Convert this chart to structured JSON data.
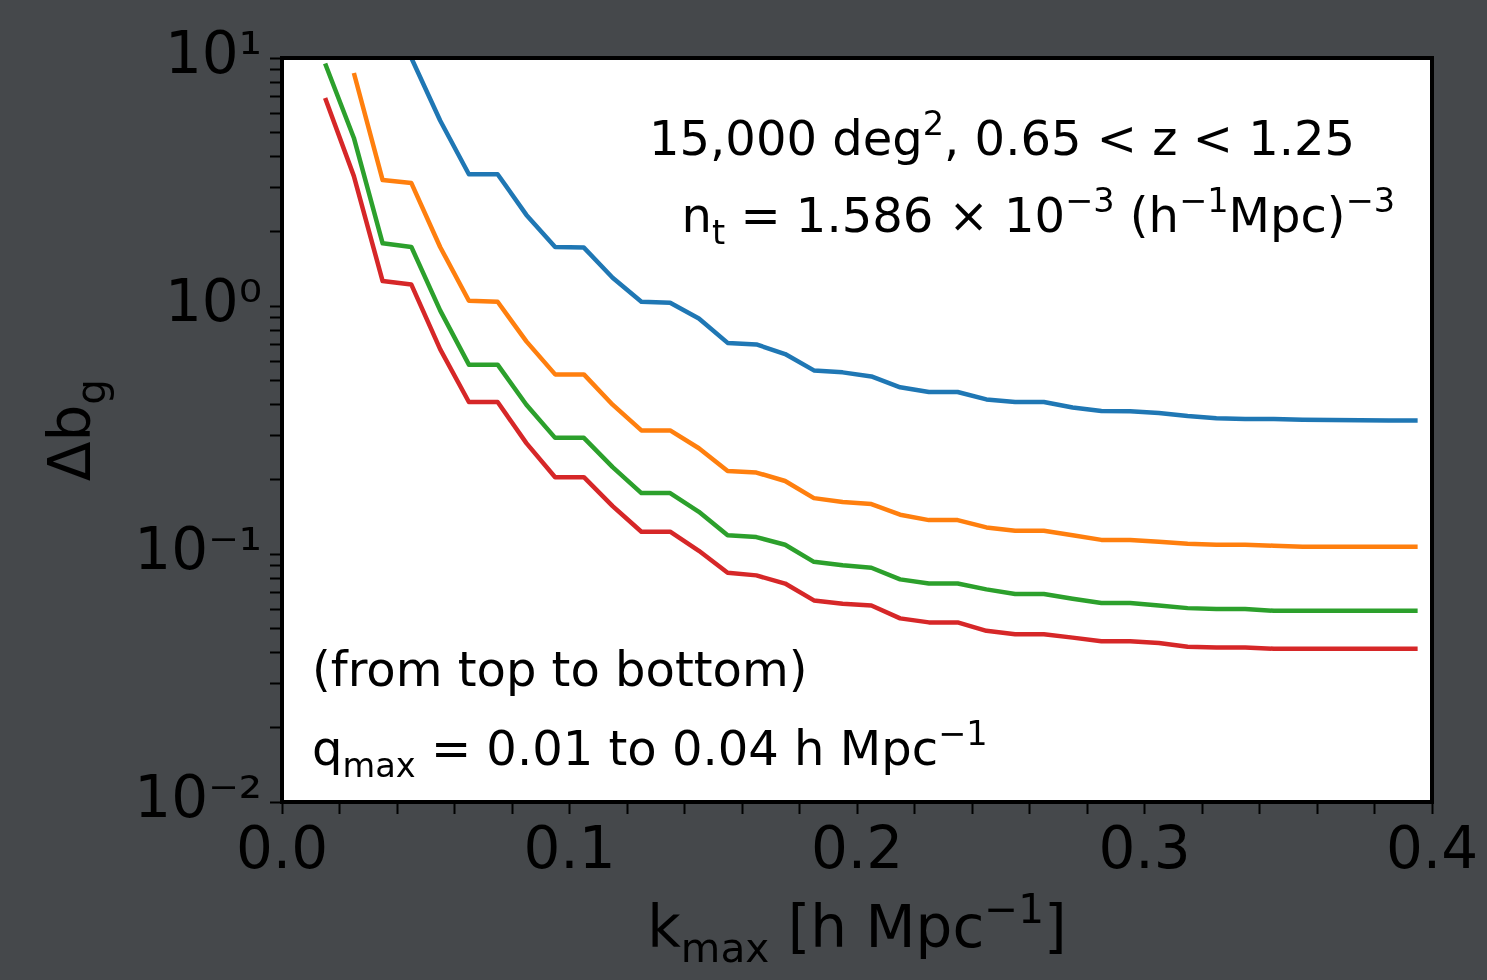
{
  "chart_data": {
    "type": "line",
    "xlabel": "k$_{max}$ [h Mpc$^{−1}$]",
    "ylabel": "Δb$_{g}$",
    "annotations": [
      "15,000 deg$^{2}$, 0.65 < z < 1.25",
      "n$_{t}$ = 1.586 × 10$^{−3}$ (h$^{−1}$Mpc)$^{−3}$",
      "(from top to bottom)",
      "q$_{max}$ = 0.01 to 0.04 h Mpc$^{−1}$"
    ],
    "x": [
      0.015,
      0.025,
      0.035,
      0.045,
      0.055,
      0.065,
      0.075,
      0.085,
      0.095,
      0.105,
      0.115,
      0.125,
      0.135,
      0.145,
      0.155,
      0.165,
      0.175,
      0.185,
      0.195,
      0.205,
      0.215,
      0.225,
      0.235,
      0.245,
      0.255,
      0.265,
      0.275,
      0.285,
      0.295,
      0.305,
      0.315,
      0.325,
      0.335,
      0.345,
      0.355,
      0.365,
      0.375,
      0.385,
      0.395
    ],
    "series": [
      {
        "color": "#1f77b4",
        "values": [
          null,
          null,
          null,
          10,
          5.6,
          3.4,
          3.4,
          2.33,
          1.73,
          1.72,
          1.3,
          1.04,
          1.03,
          0.89,
          0.71,
          0.7,
          0.64,
          0.55,
          0.54,
          0.52,
          0.47,
          0.45,
          0.45,
          0.42,
          0.41,
          0.41,
          0.39,
          0.377,
          0.376,
          0.37,
          0.36,
          0.353,
          0.35,
          0.35,
          0.348,
          0.347,
          0.346,
          0.345,
          0.345
        ]
      },
      {
        "color": "#ff7f0e",
        "values": [
          null,
          8.7,
          3.22,
          3.13,
          1.73,
          1.05,
          1.04,
          0.72,
          0.53,
          0.53,
          0.4,
          0.315,
          0.315,
          0.267,
          0.216,
          0.213,
          0.197,
          0.168,
          0.162,
          0.159,
          0.144,
          0.137,
          0.137,
          0.128,
          0.124,
          0.124,
          0.119,
          0.114,
          0.114,
          0.112,
          0.11,
          0.109,
          0.109,
          0.108,
          0.107,
          0.107,
          0.107,
          0.107,
          0.107
        ]
      },
      {
        "color": "#2ca02c",
        "values": [
          9.5,
          4.76,
          1.79,
          1.73,
          0.96,
          0.58,
          0.58,
          0.4,
          0.294,
          0.294,
          0.224,
          0.176,
          0.176,
          0.148,
          0.119,
          0.117,
          0.109,
          0.093,
          0.09,
          0.088,
          0.079,
          0.076,
          0.076,
          0.072,
          0.069,
          0.069,
          0.066,
          0.0635,
          0.0635,
          0.062,
          0.0605,
          0.06,
          0.06,
          0.059,
          0.059,
          0.059,
          0.059,
          0.059,
          0.059
        ]
      },
      {
        "color": "#d62728",
        "values": [
          6.9,
          3.34,
          1.26,
          1.22,
          0.67,
          0.41,
          0.41,
          0.28,
          0.204,
          0.204,
          0.156,
          0.123,
          0.123,
          0.103,
          0.084,
          0.082,
          0.076,
          0.065,
          0.063,
          0.062,
          0.055,
          0.053,
          0.053,
          0.049,
          0.0475,
          0.0475,
          0.046,
          0.0445,
          0.0445,
          0.0438,
          0.0423,
          0.042,
          0.042,
          0.0415,
          0.0415,
          0.0415,
          0.0415,
          0.0415,
          0.0415
        ]
      }
    ],
    "log": "y",
    "xlim": [
      0,
      0.4
    ],
    "xticks": [
      {
        "value": 0,
        "label": "0.0"
      },
      {
        "value": 0.02,
        "label": null
      },
      {
        "value": 0.04,
        "label": null
      },
      {
        "value": 0.06,
        "label": null
      },
      {
        "value": 0.08,
        "label": null
      },
      {
        "value": 0.1,
        "label": "0.1"
      },
      {
        "value": 0.12,
        "label": null
      },
      {
        "value": 0.14,
        "label": null
      },
      {
        "value": 0.16,
        "label": null
      },
      {
        "value": 0.18,
        "label": null
      },
      {
        "value": 0.2,
        "label": "0.2"
      },
      {
        "value": 0.22,
        "label": null
      },
      {
        "value": 0.24,
        "label": null
      },
      {
        "value": 0.26,
        "label": null
      },
      {
        "value": 0.28,
        "label": null
      },
      {
        "value": 0.3,
        "label": "0.3"
      },
      {
        "value": 0.32,
        "label": null
      },
      {
        "value": 0.34,
        "label": null
      },
      {
        "value": 0.36,
        "label": null
      },
      {
        "value": 0.38,
        "label": null
      },
      {
        "value": 0.4,
        "label": "0.4"
      }
    ],
    "ylim": [
      0.01,
      10
    ],
    "yticks": [
      {
        "value": 0.01,
        "label": "10⁻²"
      },
      {
        "value": 0.02,
        "label": null
      },
      {
        "value": 0.03,
        "label": null
      },
      {
        "value": 0.04,
        "label": null
      },
      {
        "value": 0.05,
        "label": null
      },
      {
        "value": 0.06,
        "label": null
      },
      {
        "value": 0.07,
        "label": null
      },
      {
        "value": 0.08,
        "label": null
      },
      {
        "value": 0.09,
        "label": null
      },
      {
        "value": 0.1,
        "label": "10⁻¹"
      },
      {
        "value": 0.2,
        "label": null
      },
      {
        "value": 0.3,
        "label": null
      },
      {
        "value": 0.4,
        "label": null
      },
      {
        "value": 0.5,
        "label": null
      },
      {
        "value": 0.6,
        "label": null
      },
      {
        "value": 0.7,
        "label": null
      },
      {
        "value": 0.8,
        "label": null
      },
      {
        "value": 0.9,
        "label": null
      },
      {
        "value": 1,
        "label": "10⁰"
      },
      {
        "value": 2,
        "label": null
      },
      {
        "value": 3,
        "label": null
      },
      {
        "value": 4,
        "label": null
      },
      {
        "value": 5,
        "label": null
      },
      {
        "value": 6,
        "label": null
      },
      {
        "value": 7,
        "label": null
      },
      {
        "value": 8,
        "label": null
      },
      {
        "value": 9,
        "label": null
      },
      {
        "value": 10,
        "label": "10¹"
      }
    ],
    "grid": false,
    "legend": false
  }
}
